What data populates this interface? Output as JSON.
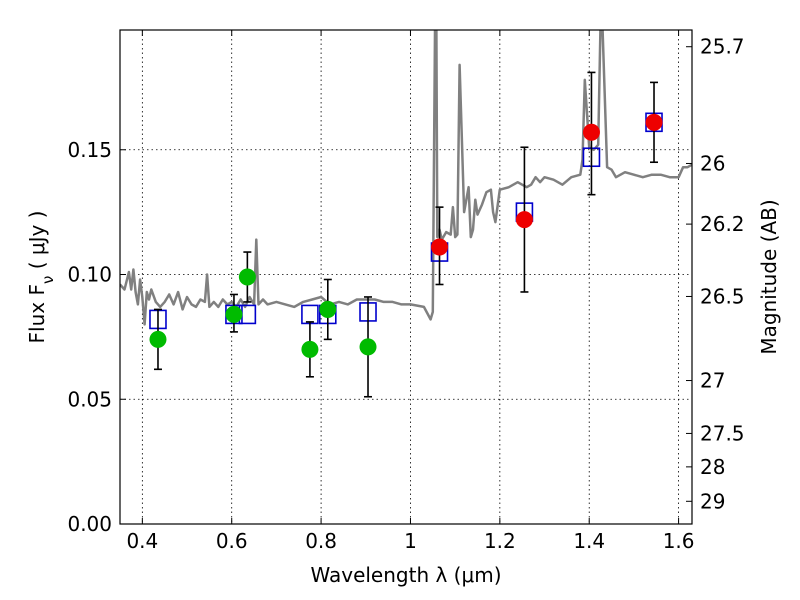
{
  "chart_data": {
    "type": "scatter",
    "title": "",
    "xlabel": "Wavelength  λ (μm)",
    "ylabel": "Flux  F_ν  ( μJy )",
    "ylabel_right": "Magnitude (AB)",
    "xlim": [
      0.35,
      1.63
    ],
    "ylim": [
      0.0,
      0.198
    ],
    "grid": true,
    "x_ticks": [
      0.4,
      0.6,
      0.8,
      1.0,
      1.2,
      1.4,
      1.6
    ],
    "x_tick_labels": [
      "0.4",
      "0.6",
      "0.8",
      "1",
      "1.2",
      "1.4",
      "1.6"
    ],
    "y_ticks": [
      0.0,
      0.05,
      0.1,
      0.15
    ],
    "y_tick_labels": [
      "0.00",
      "0.05",
      "0.10",
      "0.15"
    ],
    "right_ticks": [
      {
        "label": "25.7",
        "flux": 0.1913
      },
      {
        "label": "26",
        "flux": 0.1445
      },
      {
        "label": "26.2",
        "flux": 0.1202
      },
      {
        "label": "26.5",
        "flux": 0.0912
      },
      {
        "label": "27",
        "flux": 0.0575
      },
      {
        "label": "27.5",
        "flux": 0.0363
      },
      {
        "label": "28",
        "flux": 0.0229
      },
      {
        "label": "29",
        "flux": 0.0091
      }
    ],
    "series": [
      {
        "kind": "model-spectrum",
        "color": "#808080",
        "x": [
          0.35,
          0.36,
          0.37,
          0.375,
          0.38,
          0.385,
          0.39,
          0.395,
          0.4,
          0.405,
          0.41,
          0.415,
          0.42,
          0.43,
          0.44,
          0.45,
          0.46,
          0.47,
          0.48,
          0.49,
          0.5,
          0.51,
          0.52,
          0.53,
          0.54,
          0.545,
          0.55,
          0.555,
          0.56,
          0.57,
          0.58,
          0.59,
          0.6,
          0.61,
          0.62,
          0.63,
          0.64,
          0.65,
          0.655,
          0.66,
          0.67,
          0.68,
          0.7,
          0.72,
          0.74,
          0.76,
          0.78,
          0.8,
          0.82,
          0.84,
          0.86,
          0.88,
          0.9,
          0.92,
          0.94,
          0.96,
          0.98,
          1.0,
          1.03,
          1.045,
          1.05,
          1.055,
          1.058,
          1.06,
          1.065,
          1.07,
          1.08,
          1.09,
          1.095,
          1.1,
          1.105,
          1.11,
          1.12,
          1.13,
          1.135,
          1.14,
          1.145,
          1.15,
          1.16,
          1.17,
          1.18,
          1.185,
          1.19,
          1.2,
          1.22,
          1.24,
          1.26,
          1.27,
          1.28,
          1.29,
          1.3,
          1.32,
          1.34,
          1.36,
          1.38,
          1.385,
          1.39,
          1.4,
          1.41,
          1.42,
          1.425,
          1.43,
          1.44,
          1.45,
          1.46,
          1.48,
          1.5,
          1.52,
          1.54,
          1.56,
          1.58,
          1.6,
          1.61,
          1.62,
          1.63
        ],
        "y": [
          0.096,
          0.094,
          0.101,
          0.094,
          0.102,
          0.093,
          0.088,
          0.098,
          0.091,
          0.08,
          0.093,
          0.09,
          0.094,
          0.089,
          0.087,
          0.089,
          0.092,
          0.088,
          0.093,
          0.086,
          0.091,
          0.088,
          0.087,
          0.09,
          0.089,
          0.1,
          0.087,
          0.088,
          0.089,
          0.087,
          0.09,
          0.088,
          0.089,
          0.087,
          0.09,
          0.087,
          0.091,
          0.088,
          0.114,
          0.088,
          0.09,
          0.088,
          0.089,
          0.088,
          0.087,
          0.089,
          0.09,
          0.091,
          0.088,
          0.089,
          0.088,
          0.09,
          0.09,
          0.09,
          0.089,
          0.089,
          0.088,
          0.088,
          0.087,
          0.082,
          0.085,
          0.198,
          0.198,
          0.115,
          0.118,
          0.114,
          0.117,
          0.116,
          0.127,
          0.115,
          0.116,
          0.184,
          0.125,
          0.135,
          0.115,
          0.118,
          0.13,
          0.124,
          0.128,
          0.133,
          0.134,
          0.125,
          0.121,
          0.134,
          0.135,
          0.137,
          0.135,
          0.136,
          0.139,
          0.137,
          0.139,
          0.138,
          0.136,
          0.139,
          0.14,
          0.146,
          0.178,
          0.151,
          0.15,
          0.152,
          0.198,
          0.198,
          0.143,
          0.142,
          0.139,
          0.141,
          0.14,
          0.139,
          0.14,
          0.14,
          0.139,
          0.139,
          0.143,
          0.143,
          0.144
        ]
      },
      {
        "kind": "model-photometry",
        "marker": "open-square",
        "color": "#0000cc",
        "x": [
          0.435,
          0.605,
          0.635,
          0.775,
          0.815,
          0.905,
          1.065,
          1.255,
          1.405,
          1.545
        ],
        "y": [
          0.082,
          0.084,
          0.084,
          0.084,
          0.084,
          0.085,
          0.109,
          0.125,
          0.147,
          0.161
        ]
      },
      {
        "kind": "observed-detections",
        "marker": "filled-circle",
        "color": "#00bb00",
        "x": [
          0.435,
          0.605,
          0.635,
          0.775,
          0.815,
          0.905
        ],
        "y": [
          0.074,
          0.084,
          0.099,
          0.07,
          0.086,
          0.071
        ],
        "err_low": [
          0.062,
          0.077,
          0.089,
          0.059,
          0.074,
          0.051
        ],
        "err_high": [
          0.086,
          0.092,
          0.109,
          0.081,
          0.098,
          0.091
        ]
      },
      {
        "kind": "observed-detections",
        "marker": "filled-circle",
        "color": "#ee0000",
        "x": [
          1.065,
          1.255,
          1.405,
          1.545
        ],
        "y": [
          0.111,
          0.122,
          0.157,
          0.161
        ],
        "err_low": [
          0.096,
          0.093,
          0.132,
          0.145
        ],
        "err_high": [
          0.127,
          0.151,
          0.181,
          0.177
        ]
      }
    ]
  }
}
